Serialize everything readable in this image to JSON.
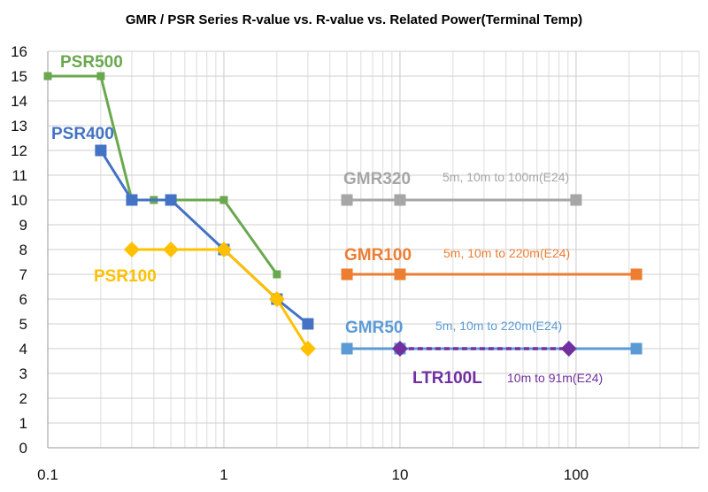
{
  "chart_data": {
    "type": "line",
    "title": "GMR / PSR Series R-value vs. R-value vs. Related Power(Terminal Temp)",
    "xlabel": "",
    "ylabel": "",
    "x_scale": "log",
    "xlim": [
      0.1,
      500
    ],
    "ylim": [
      0,
      16
    ],
    "x_tick_labels": [
      "0.1",
      "1",
      "10",
      "100"
    ],
    "y_ticks": [
      0,
      1,
      2,
      3,
      4,
      5,
      6,
      7,
      8,
      9,
      10,
      11,
      12,
      13,
      14,
      15,
      16
    ],
    "grid": true,
    "legend": "none",
    "series": [
      {
        "name": "PSR500",
        "color": "#6aa84f",
        "marker": "square-small",
        "points": [
          [
            0.1,
            15
          ],
          [
            0.2,
            15
          ],
          [
            0.3,
            10
          ],
          [
            0.4,
            10
          ],
          [
            0.5,
            10
          ],
          [
            1,
            10
          ],
          [
            2,
            7
          ]
        ]
      },
      {
        "name": "PSR400",
        "color": "#4472c4",
        "marker": "square",
        "points": [
          [
            0.2,
            12
          ],
          [
            0.3,
            10
          ],
          [
            0.5,
            10
          ],
          [
            1,
            8
          ],
          [
            2,
            6
          ],
          [
            3,
            5
          ]
        ]
      },
      {
        "name": "PSR100",
        "color": "#ffc000",
        "marker": "diamond",
        "points": [
          [
            0.3,
            8
          ],
          [
            0.5,
            8
          ],
          [
            1,
            8
          ],
          [
            2,
            6
          ],
          [
            3,
            4
          ]
        ]
      },
      {
        "name": "GMR320",
        "color": "#a6a6a6",
        "marker": "square",
        "range_text": "5m, 10m to 100m(E24)",
        "points": [
          [
            5,
            10
          ],
          [
            10,
            10
          ],
          [
            100,
            10
          ]
        ]
      },
      {
        "name": "GMR100",
        "color": "#ed7d31",
        "marker": "square",
        "range_text": "5m, 10m to 220m(E24)",
        "points": [
          [
            5,
            7
          ],
          [
            10,
            7
          ],
          [
            220,
            7
          ]
        ]
      },
      {
        "name": "GMR50",
        "color": "#5b9bd5",
        "marker": "square",
        "range_text": "5m, 10m to 220m(E24)",
        "points": [
          [
            5,
            4
          ],
          [
            10,
            4
          ],
          [
            220,
            4
          ]
        ]
      },
      {
        "name": "LTR100L",
        "color": "#7030a0",
        "marker": "diamond",
        "dashed": true,
        "range_text": "10m to 91m(E24)",
        "points": [
          [
            10,
            4
          ],
          [
            91,
            4
          ]
        ]
      }
    ]
  }
}
